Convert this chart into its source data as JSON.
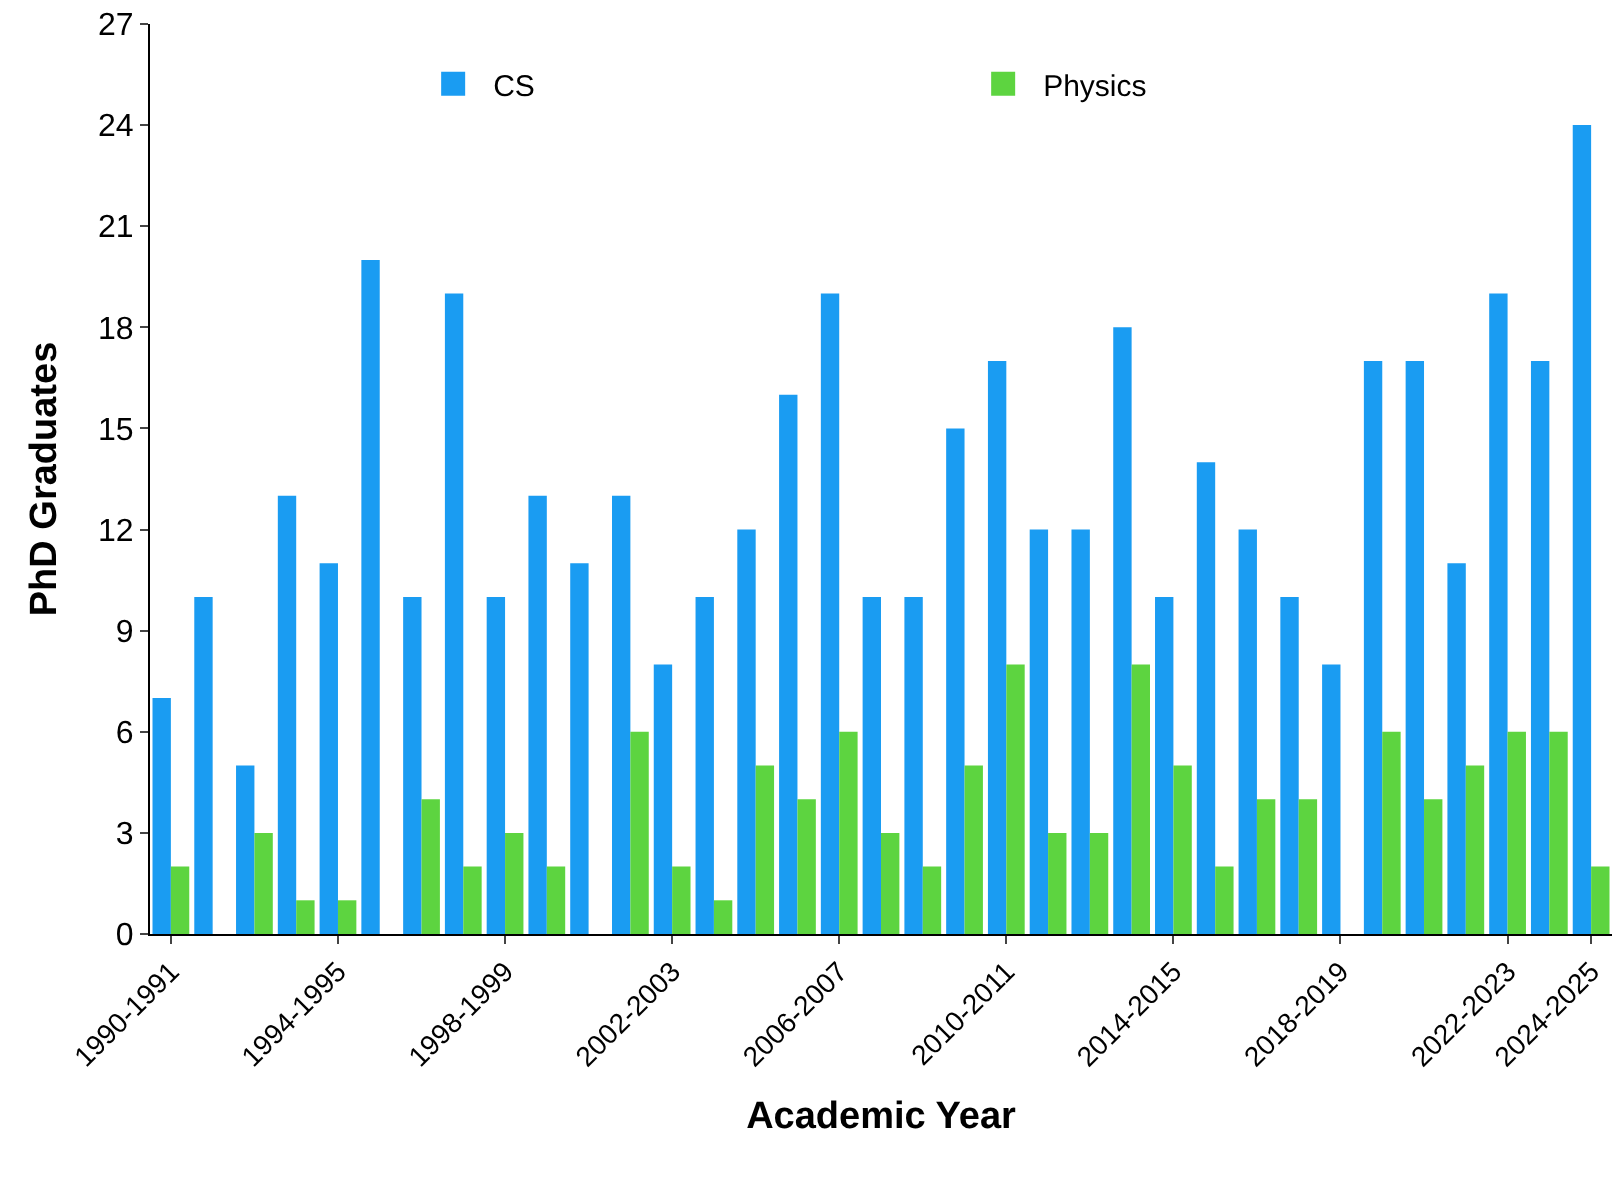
{
  "chart_data": {
    "type": "bar",
    "xlabel": "Academic Year",
    "ylabel": "PhD Graduates",
    "categories": [
      "1990-1991",
      null,
      null,
      null,
      "1994-1995",
      null,
      null,
      null,
      "1998-1999",
      null,
      null,
      null,
      "2002-2003",
      null,
      null,
      null,
      "2006-2007",
      null,
      null,
      null,
      "2010-2011",
      null,
      null,
      null,
      "2014-2015",
      null,
      null,
      null,
      "2018-2019",
      null,
      null,
      null,
      "2022-2023",
      null,
      "2024-2025"
    ],
    "series": [
      {
        "name": "CS",
        "color": "#1a9cf2",
        "values": [
          7,
          10,
          5,
          13,
          11,
          20,
          10,
          19,
          10,
          13,
          11,
          13,
          8,
          10,
          12,
          16,
          19,
          10,
          10,
          15,
          17,
          12,
          12,
          18,
          10,
          14,
          12,
          10,
          8,
          17,
          17,
          11,
          19,
          17,
          24
        ]
      },
      {
        "name": "Physics",
        "color": "#5dd440",
        "values": [
          2,
          0,
          3,
          1,
          1,
          0,
          4,
          2,
          3,
          2,
          0,
          6,
          2,
          1,
          5,
          4,
          6,
          3,
          2,
          5,
          8,
          3,
          3,
          8,
          5,
          2,
          4,
          4,
          0,
          6,
          4,
          5,
          6,
          6,
          2
        ]
      }
    ],
    "ylim": [
      0,
      27
    ],
    "yticks": [
      0,
      3,
      6,
      9,
      12,
      15,
      18,
      21,
      24,
      27
    ],
    "legend": "top left"
  }
}
